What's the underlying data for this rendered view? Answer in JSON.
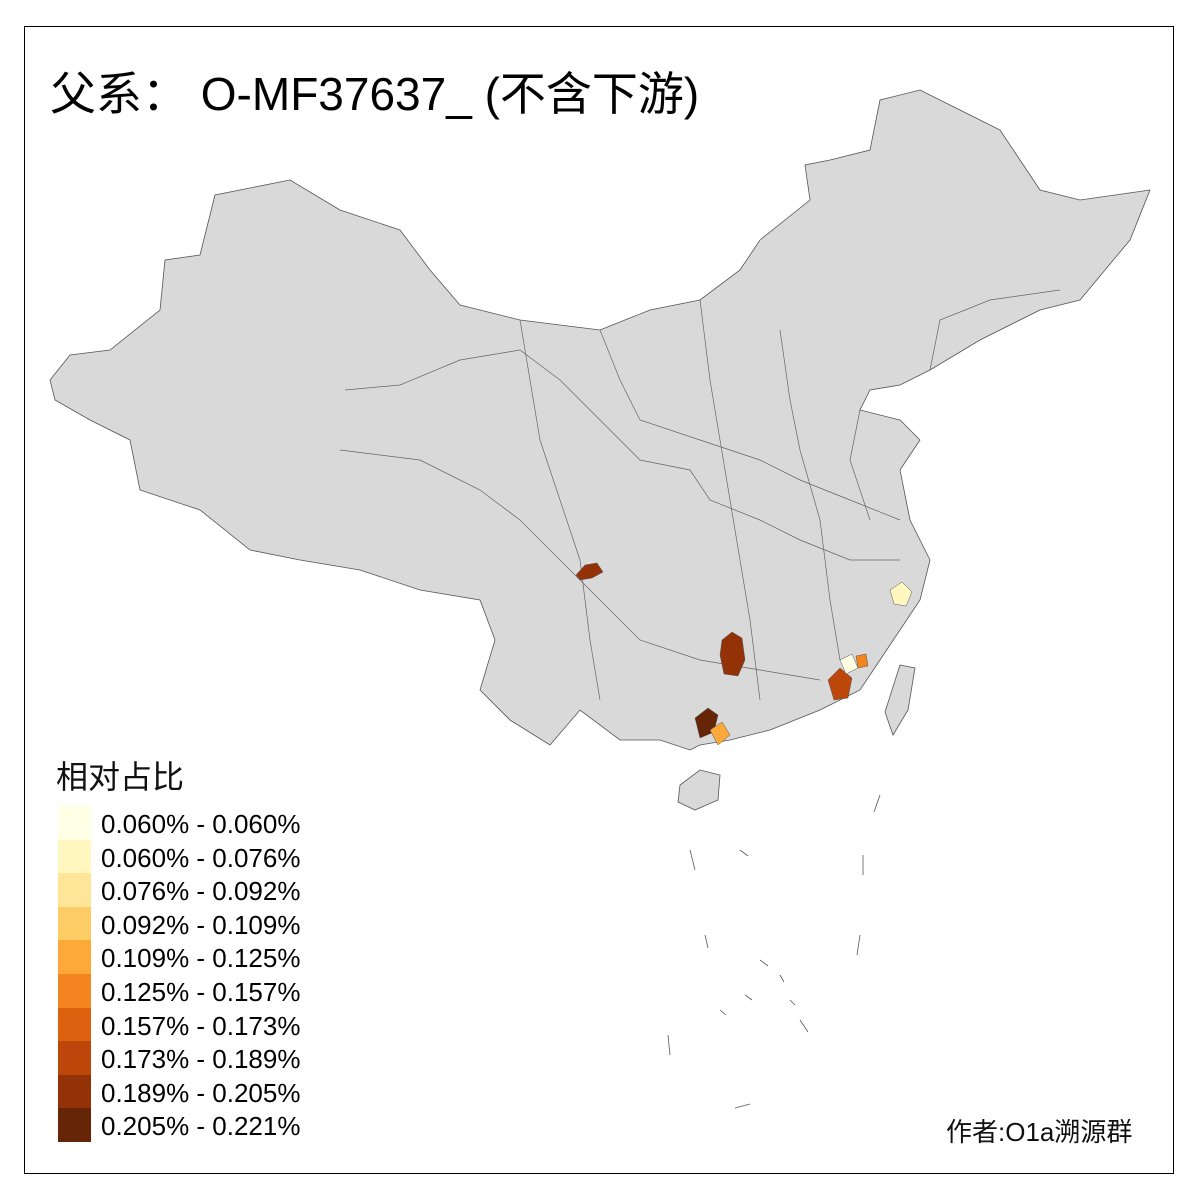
{
  "title": "父系： O-MF37637_ (不含下游)",
  "legend": {
    "title": "相对占比",
    "items": [
      {
        "label": "0.060% - 0.060%",
        "color": "#FFFFE5"
      },
      {
        "label": "0.060% - 0.076%",
        "color": "#FFF6C0"
      },
      {
        "label": "0.076% - 0.092%",
        "color": "#FEE597"
      },
      {
        "label": "0.092% - 0.109%",
        "color": "#FECC64"
      },
      {
        "label": "0.109% - 0.125%",
        "color": "#FDA93A"
      },
      {
        "label": "0.125% - 0.157%",
        "color": "#F3841F"
      },
      {
        "label": "0.157% - 0.173%",
        "color": "#DE6110"
      },
      {
        "label": "0.173% - 0.189%",
        "color": "#BD460A"
      },
      {
        "label": "0.189% - 0.205%",
        "color": "#933206"
      },
      {
        "label": "0.205% - 0.221%",
        "color": "#662506"
      }
    ]
  },
  "base_fill": "#D9D9D9",
  "author": "作者:O1a溯源群"
}
